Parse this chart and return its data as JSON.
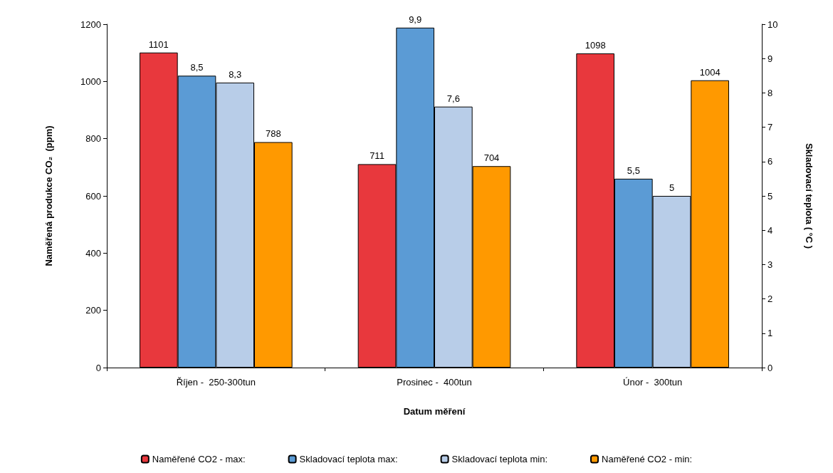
{
  "chart_data": {
    "type": "bar",
    "xlabel": "Datum měření",
    "ylabel": "Naměřená produkce CO₂  (ppm)",
    "y2label": "Skladovací teplota ( °C )",
    "categories": [
      "Říjen -  250-300tun",
      "Prosinec -  400tun",
      "Únor -  300tun"
    ],
    "series": [
      {
        "name": "Naměřené CO2 - max:",
        "color": "#e8383d",
        "values": [
          1101,
          711,
          1098
        ],
        "value_labels": [
          "1101",
          "711",
          "1098"
        ]
      },
      {
        "name": "Skladovací teplota max:",
        "color": "#5b9bd5",
        "values": [
          8.5,
          9.9,
          5.5
        ],
        "axis": "y2",
        "value_labels": [
          "8,5",
          "9,9",
          "5,5"
        ]
      },
      {
        "name": "Skladovací teplota min:",
        "color": "#b8cde8",
        "values": [
          8.3,
          7.6,
          5
        ],
        "axis": "y2",
        "value_labels": [
          "8,3",
          "7,6",
          "5"
        ]
      },
      {
        "name": "Naměřené CO2 - min:",
        "color": "#ff9900",
        "values": [
          788,
          704,
          1004
        ],
        "value_labels": [
          "788",
          "704",
          "1004"
        ]
      }
    ],
    "ylim": [
      0,
      1200
    ],
    "yticks": [
      0,
      200,
      400,
      600,
      800,
      1000,
      1200
    ],
    "y2lim": [
      0,
      10
    ],
    "y2ticks": [
      0,
      1,
      2,
      3,
      4,
      5,
      6,
      7,
      8,
      9,
      10
    ],
    "grid": false,
    "legend": "bottom"
  }
}
